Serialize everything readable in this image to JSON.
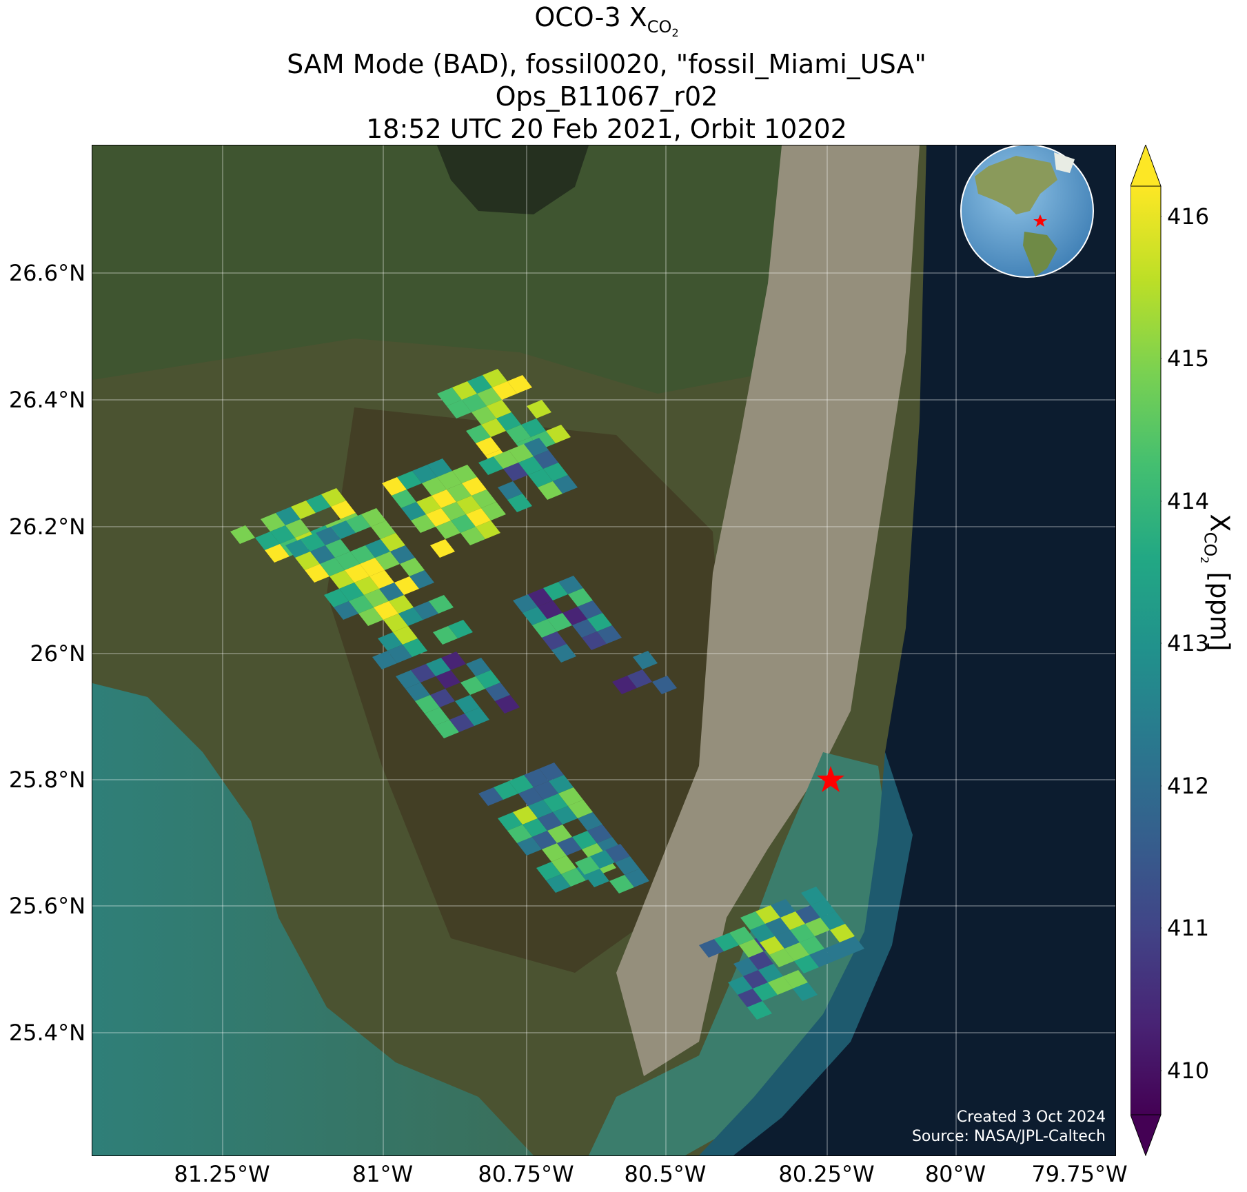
{
  "title": {
    "line1_prefix": "OCO-3 X",
    "line1_sub": "CO",
    "line1_sub2": "2",
    "line2": "SAM Mode (BAD), fossil0020, \"fossil_Miami_USA\"",
    "line3": "Ops_B11067_r02",
    "line4": "18:52 UTC 20 Feb 2021, Orbit 10202"
  },
  "map": {
    "lat_ticks": [
      "26.6°N",
      "26.4°N",
      "26.2°N",
      "26°N",
      "25.8°N",
      "25.6°N",
      "25.4°N"
    ],
    "lon_ticks": [
      "81.25°W",
      "81°W",
      "80.75°W",
      "80.5°W",
      "80.25°W",
      "80°W",
      "79.75°W"
    ],
    "target_marker": "red-star",
    "inset": "globe-western-hemisphere",
    "colors": {
      "land": "#4a5232",
      "ocean": "#0b1b2e",
      "shelf": "#2f7f78",
      "urban": "#9b9483"
    }
  },
  "credit": {
    "created": "Created 3 Oct 2024",
    "source": "Source: NASA/JPL-Caltech"
  },
  "colorbar": {
    "ticks": [
      "416",
      "415",
      "414",
      "413",
      "412",
      "411",
      "410"
    ],
    "label_prefix": "X",
    "label_sub": "CO",
    "label_sub2": "2",
    "label_suffix": " [ppm]",
    "colormap": "viridis",
    "range": [
      409.75,
      416.25
    ],
    "extend": "both"
  }
}
